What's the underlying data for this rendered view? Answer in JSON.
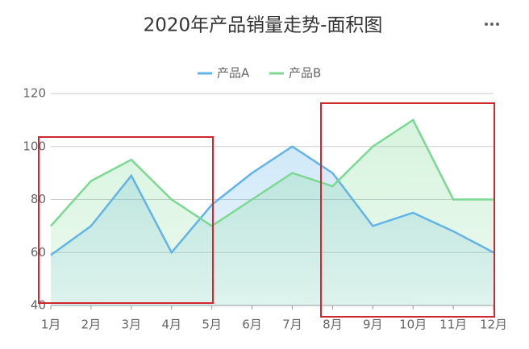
{
  "chart_data": {
    "type": "area",
    "title": "2020年产品销量走势-面积图",
    "categories": [
      "1月",
      "2月",
      "3月",
      "4月",
      "5月",
      "6月",
      "7月",
      "8月",
      "9月",
      "10月",
      "11月",
      "12月"
    ],
    "series": [
      {
        "name": "产品A",
        "color": "#62b4e8",
        "values": [
          59,
          70,
          89,
          60,
          78,
          90,
          100,
          90,
          70,
          75,
          68,
          60
        ]
      },
      {
        "name": "产品B",
        "color": "#7cd993",
        "values": [
          70,
          87,
          95,
          80,
          70,
          80,
          90,
          85,
          100,
          110,
          80,
          80
        ]
      }
    ],
    "ylim": [
      40,
      120
    ],
    "yticks": [
      40,
      60,
      80,
      100,
      120
    ],
    "grid": true,
    "legend": "top"
  }
}
